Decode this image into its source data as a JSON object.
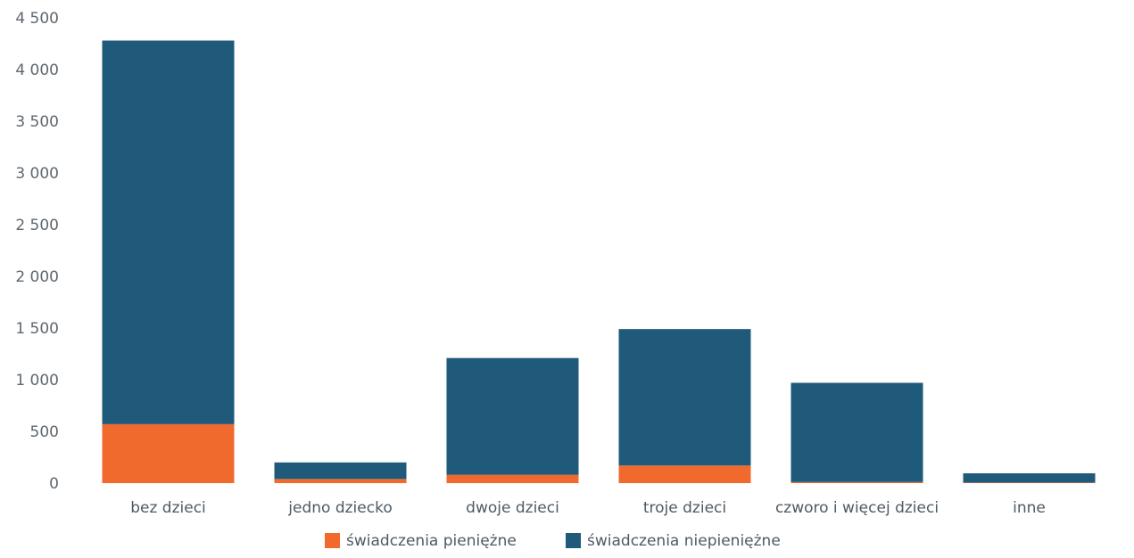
{
  "chart_data": {
    "type": "bar",
    "stacked": true,
    "categories": [
      "bez dzieci",
      "jedno dziecko",
      "dwoje dzieci",
      "troje dzieci",
      "czworo i więcej dzieci",
      "inne"
    ],
    "series": [
      {
        "name": "świadczenia pieniężne",
        "color": "#f06a2d",
        "values": [
          570,
          40,
          80,
          170,
          10,
          5
        ]
      },
      {
        "name": "świadczenia niepieniężne",
        "color": "#1f5a7a",
        "values": [
          3710,
          160,
          1130,
          1320,
          960,
          90
        ]
      }
    ],
    "ylim": [
      0,
      4500
    ],
    "yticks": [
      0,
      500,
      1000,
      1500,
      2000,
      2500,
      3000,
      3500,
      4000,
      4500
    ],
    "ytick_labels": [
      "0",
      "500",
      "1 000",
      "1 500",
      "2 000",
      "2 500",
      "3 000",
      "3 500",
      "4 000",
      "4 500"
    ],
    "grid": false,
    "legend_position": "bottom"
  }
}
